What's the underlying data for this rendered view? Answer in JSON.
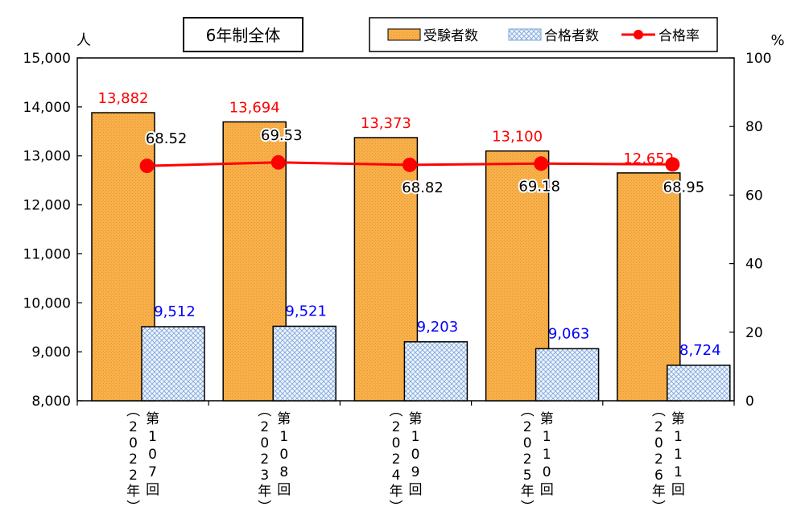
{
  "chart_data": {
    "type": "bar",
    "title": "6年制全体",
    "categories": [
      "第107回(2022年)",
      "第108回(2023年)",
      "第109回(2024年)",
      "第110回(2025年)",
      "第111回(2026年)"
    ],
    "category_labels": [
      {
        "kai": "第107回",
        "year": "(2022年)"
      },
      {
        "kai": "第108回",
        "year": "(2023年)"
      },
      {
        "kai": "第109回",
        "year": "(2024年)"
      },
      {
        "kai": "第110回",
        "year": "(2025年)"
      },
      {
        "kai": "第111回",
        "year": "(2026年)"
      }
    ],
    "series": [
      {
        "name": "受験者数",
        "type": "bar",
        "axis": "left",
        "values": [
          13882,
          13694,
          13373,
          13100,
          12652
        ],
        "labels": [
          "13,882",
          "13,694",
          "13,373",
          "13,100",
          "12,652"
        ],
        "color": "#F8B04A",
        "label_color": "#FF0000"
      },
      {
        "name": "合格者数",
        "type": "bar",
        "axis": "left",
        "values": [
          9512,
          9521,
          9203,
          9063,
          8724
        ],
        "labels": [
          "9,512",
          "9,521",
          "9,203",
          "9,063",
          "8,724"
        ],
        "color": "#D6E6FA",
        "label_color": "#0000FF"
      },
      {
        "name": "合格率",
        "type": "line",
        "axis": "right",
        "values": [
          68.52,
          69.53,
          68.82,
          69.18,
          68.95
        ],
        "labels": [
          "68.52",
          "69.53",
          "68.82",
          "69.18",
          "68.95"
        ],
        "color": "#FF0000",
        "label_color": "#000000"
      }
    ],
    "y_left": {
      "unit": "人",
      "range": [
        8000,
        15000
      ],
      "ticks": [
        "8,000",
        "9,000",
        "10,000",
        "11,000",
        "12,000",
        "13,000",
        "14,000",
        "15,000"
      ]
    },
    "y_right": {
      "unit": "%",
      "range": [
        0,
        100
      ],
      "ticks": [
        "0",
        "20",
        "40",
        "60",
        "80",
        "100"
      ]
    },
    "grid": false,
    "legend": "top"
  }
}
